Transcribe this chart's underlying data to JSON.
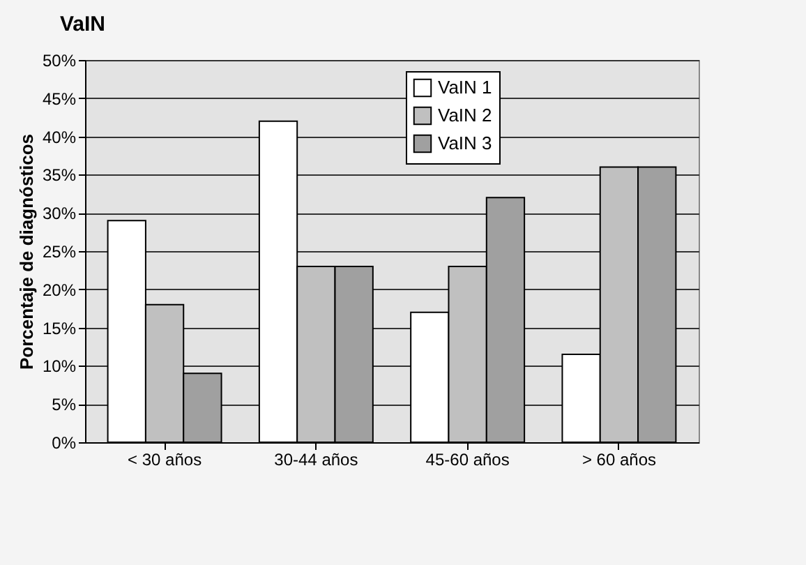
{
  "chart_data": {
    "type": "bar",
    "title": "VaIN",
    "ylabel": "Porcentaje de diagnósticos",
    "categories": [
      "< 30 años",
      "30-44 años",
      "45-60 años",
      "> 60 años"
    ],
    "series": [
      {
        "name": "VaIN 1",
        "color": "#ffffff",
        "values": [
          29,
          42,
          17,
          11.5
        ]
      },
      {
        "name": "VaIN 2",
        "color": "#c0c0c0",
        "values": [
          18,
          23,
          23,
          36
        ]
      },
      {
        "name": "VaIN 3",
        "color": "#a0a0a0",
        "values": [
          9,
          23,
          32,
          36
        ]
      }
    ],
    "ylim": [
      0,
      50
    ],
    "yticks": [
      {
        "value": 0,
        "label": "0%"
      },
      {
        "value": 5,
        "label": "5%"
      },
      {
        "value": 10,
        "label": "10%"
      },
      {
        "value": 15,
        "label": "15%"
      },
      {
        "value": 20,
        "label": "20%"
      },
      {
        "value": 25,
        "label": "25%"
      },
      {
        "value": 30,
        "label": "30%"
      },
      {
        "value": 35,
        "label": "35%"
      },
      {
        "value": 40,
        "label": "40%"
      },
      {
        "value": 45,
        "label": "45%"
      },
      {
        "value": 50,
        "label": "50%"
      }
    ],
    "grid": "y",
    "legend": "top right"
  }
}
